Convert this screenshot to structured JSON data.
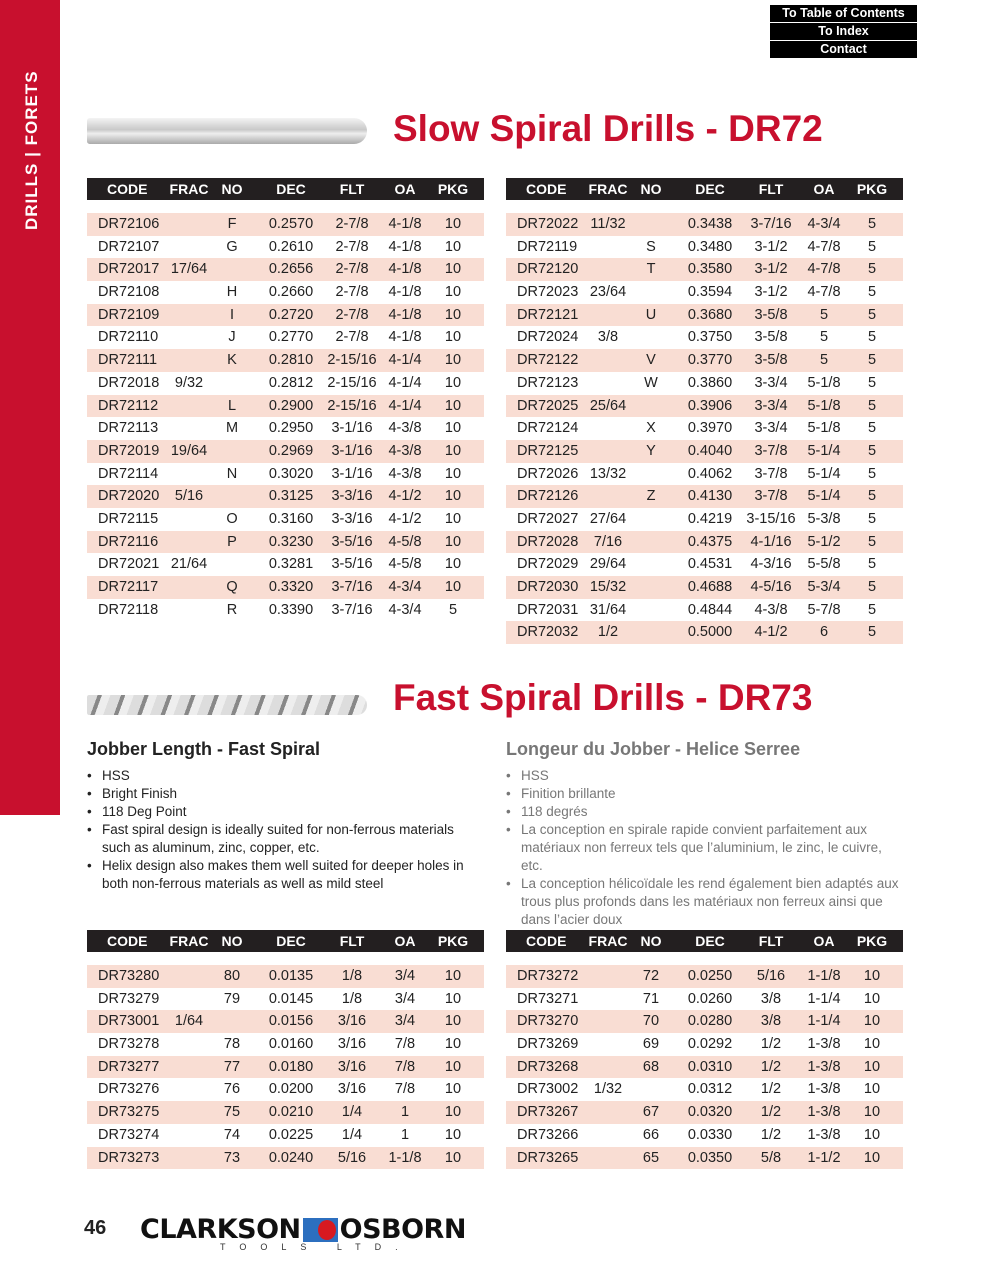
{
  "sidebar": {
    "label": "DRILLS | FORETS"
  },
  "nav": [
    "To Table of Contents",
    "To Index",
    "Contact"
  ],
  "slow": {
    "title": "Slow Spiral Drills - DR72"
  },
  "fast": {
    "title": "Fast Spiral Drills - DR73",
    "en": {
      "heading": "Jobber Length - Fast Spiral",
      "bullets": [
        "HSS",
        "Bright Finish",
        "118 Deg Point",
        "Fast spiral design is ideally suited for non-ferrous materials such as aluminum, zinc, copper, etc.",
        "Helix design also makes them well suited for deeper holes in both non-ferrous materials as well as mild steel"
      ]
    },
    "fr": {
      "heading": "Longeur du Jobber - Helice Serree",
      "bullets": [
        "HSS",
        "Finition brillante",
        "118 degrés",
        "La conception en spirale rapide convient parfaitement aux matériaux non ferreux tels que l’aluminium, le zinc, le cuivre, etc.",
        "La conception hélicoïdale les rend également bien adaptés aux trous plus profonds dans les matériaux non ferreux ainsi que dans l’acier doux"
      ]
    }
  },
  "columns": [
    "CODE",
    "FRAC",
    "NO",
    "DEC",
    "FLT",
    "OA",
    "PKG"
  ],
  "tables": {
    "slow_left": [
      [
        "DR72106",
        "",
        "F",
        "0.2570",
        "2-7/8",
        "4-1/8",
        "10"
      ],
      [
        "DR72107",
        "",
        "G",
        "0.2610",
        "2-7/8",
        "4-1/8",
        "10"
      ],
      [
        "DR72017",
        "17/64",
        "",
        "0.2656",
        "2-7/8",
        "4-1/8",
        "10"
      ],
      [
        "DR72108",
        "",
        "H",
        "0.2660",
        "2-7/8",
        "4-1/8",
        "10"
      ],
      [
        "DR72109",
        "",
        "I",
        "0.2720",
        "2-7/8",
        "4-1/8",
        "10"
      ],
      [
        "DR72110",
        "",
        "J",
        "0.2770",
        "2-7/8",
        "4-1/8",
        "10"
      ],
      [
        "DR72111",
        "",
        "K",
        "0.2810",
        "2-15/16",
        "4-1/4",
        "10"
      ],
      [
        "DR72018",
        "9/32",
        "",
        "0.2812",
        "2-15/16",
        "4-1/4",
        "10"
      ],
      [
        "DR72112",
        "",
        "L",
        "0.2900",
        "2-15/16",
        "4-1/4",
        "10"
      ],
      [
        "DR72113",
        "",
        "M",
        "0.2950",
        "3-1/16",
        "4-3/8",
        "10"
      ],
      [
        "DR72019",
        "19/64",
        "",
        "0.2969",
        "3-1/16",
        "4-3/8",
        "10"
      ],
      [
        "DR72114",
        "",
        "N",
        "0.3020",
        "3-1/16",
        "4-3/8",
        "10"
      ],
      [
        "DR72020",
        "5/16",
        "",
        "0.3125",
        "3-3/16",
        "4-1/2",
        "10"
      ],
      [
        "DR72115",
        "",
        "O",
        "0.3160",
        "3-3/16",
        "4-1/2",
        "10"
      ],
      [
        "DR72116",
        "",
        "P",
        "0.3230",
        "3-5/16",
        "4-5/8",
        "10"
      ],
      [
        "DR72021",
        "21/64",
        "",
        "0.3281",
        "3-5/16",
        "4-5/8",
        "10"
      ],
      [
        "DR72117",
        "",
        "Q",
        "0.3320",
        "3-7/16",
        "4-3/4",
        "10"
      ],
      [
        "DR72118",
        "",
        "R",
        "0.3390",
        "3-7/16",
        "4-3/4",
        "5"
      ]
    ],
    "slow_right": [
      [
        "DR72022",
        "11/32",
        "",
        "0.3438",
        "3-7/16",
        "4-3/4",
        "5"
      ],
      [
        "DR72119",
        "",
        "S",
        "0.3480",
        "3-1/2",
        "4-7/8",
        "5"
      ],
      [
        "DR72120",
        "",
        "T",
        "0.3580",
        "3-1/2",
        "4-7/8",
        "5"
      ],
      [
        "DR72023",
        "23/64",
        "",
        "0.3594",
        "3-1/2",
        "4-7/8",
        "5"
      ],
      [
        "DR72121",
        "",
        "U",
        "0.3680",
        "3-5/8",
        "5",
        "5"
      ],
      [
        "DR72024",
        "3/8",
        "",
        "0.3750",
        "3-5/8",
        "5",
        "5"
      ],
      [
        "DR72122",
        "",
        "V",
        "0.3770",
        "3-5/8",
        "5",
        "5"
      ],
      [
        "DR72123",
        "",
        "W",
        "0.3860",
        "3-3/4",
        "5-1/8",
        "5"
      ],
      [
        "DR72025",
        "25/64",
        "",
        "0.3906",
        "3-3/4",
        "5-1/8",
        "5"
      ],
      [
        "DR72124",
        "",
        "X",
        "0.3970",
        "3-3/4",
        "5-1/8",
        "5"
      ],
      [
        "DR72125",
        "",
        "Y",
        "0.4040",
        "3-7/8",
        "5-1/4",
        "5"
      ],
      [
        "DR72026",
        "13/32",
        "",
        "0.4062",
        "3-7/8",
        "5-1/4",
        "5"
      ],
      [
        "DR72126",
        "",
        "Z",
        "0.4130",
        "3-7/8",
        "5-1/4",
        "5"
      ],
      [
        "DR72027",
        "27/64",
        "",
        "0.4219",
        "3-15/16",
        "5-3/8",
        "5"
      ],
      [
        "DR72028",
        "7/16",
        "",
        "0.4375",
        "4-1/16",
        "5-1/2",
        "5"
      ],
      [
        "DR72029",
        "29/64",
        "",
        "0.4531",
        "4-3/16",
        "5-5/8",
        "5"
      ],
      [
        "DR72030",
        "15/32",
        "",
        "0.4688",
        "4-5/16",
        "5-3/4",
        "5"
      ],
      [
        "DR72031",
        "31/64",
        "",
        "0.4844",
        "4-3/8",
        "5-7/8",
        "5"
      ],
      [
        "DR72032",
        "1/2",
        "",
        "0.5000",
        "4-1/2",
        "6",
        "5"
      ]
    ],
    "fast_left": [
      [
        "DR73280",
        "",
        "80",
        "0.0135",
        "1/8",
        "3/4",
        "10"
      ],
      [
        "DR73279",
        "",
        "79",
        "0.0145",
        "1/8",
        "3/4",
        "10"
      ],
      [
        "DR73001",
        "1/64",
        "",
        "0.0156",
        "3/16",
        "3/4",
        "10"
      ],
      [
        "DR73278",
        "",
        "78",
        "0.0160",
        "3/16",
        "7/8",
        "10"
      ],
      [
        "DR73277",
        "",
        "77",
        "0.0180",
        "3/16",
        "7/8",
        "10"
      ],
      [
        "DR73276",
        "",
        "76",
        "0.0200",
        "3/16",
        "7/8",
        "10"
      ],
      [
        "DR73275",
        "",
        "75",
        "0.0210",
        "1/4",
        "1",
        "10"
      ],
      [
        "DR73274",
        "",
        "74",
        "0.0225",
        "1/4",
        "1",
        "10"
      ],
      [
        "DR73273",
        "",
        "73",
        "0.0240",
        "5/16",
        "1-1/8",
        "10"
      ]
    ],
    "fast_right": [
      [
        "DR73272",
        "",
        "72",
        "0.0250",
        "5/16",
        "1-1/8",
        "10"
      ],
      [
        "DR73271",
        "",
        "71",
        "0.0260",
        "3/8",
        "1-1/4",
        "10"
      ],
      [
        "DR73270",
        "",
        "70",
        "0.0280",
        "3/8",
        "1-1/4",
        "10"
      ],
      [
        "DR73269",
        "",
        "69",
        "0.0292",
        "1/2",
        "1-3/8",
        "10"
      ],
      [
        "DR73268",
        "",
        "68",
        "0.0310",
        "1/2",
        "1-3/8",
        "10"
      ],
      [
        "DR73002",
        "1/32",
        "",
        "0.0312",
        "1/2",
        "1-3/8",
        "10"
      ],
      [
        "DR73267",
        "",
        "67",
        "0.0320",
        "1/2",
        "1-3/8",
        "10"
      ],
      [
        "DR73266",
        "",
        "66",
        "0.0330",
        "1/2",
        "1-3/8",
        "10"
      ],
      [
        "DR73265",
        "",
        "65",
        "0.0350",
        "5/8",
        "1-1/2",
        "10"
      ]
    ]
  },
  "footer": {
    "page": "46",
    "logo_left": "CLARKSON",
    "logo_right": "OSBORN",
    "logo_sub": "TOOLS LTD."
  },
  "colors": {
    "brand_red": "#c8102e",
    "row_pink": "#f9ddd3",
    "header_black": "#231f20"
  }
}
